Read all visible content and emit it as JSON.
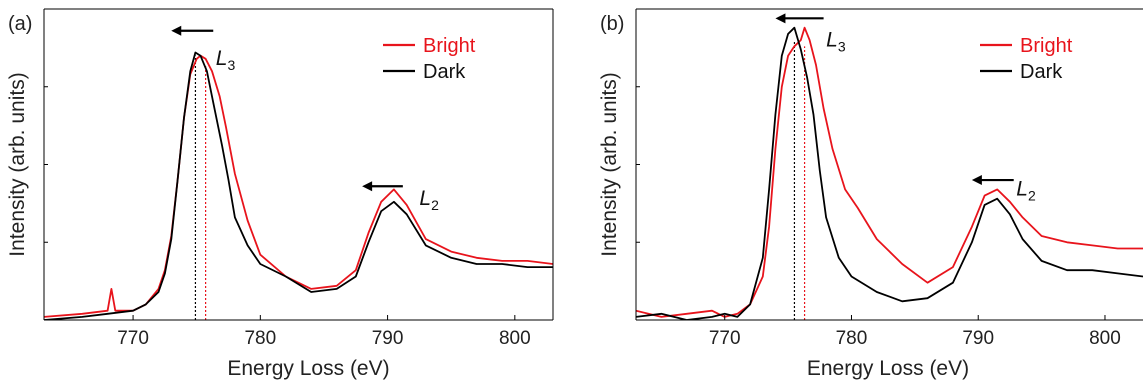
{
  "colors": {
    "bright": "#e8141c",
    "dark": "#000000",
    "axis": "#000000"
  },
  "chart_data": [
    {
      "type": "line",
      "panel_label": "(a)",
      "xlabel": "Energy Loss (eV)",
      "ylabel": "Intensity (arb. units)",
      "xlim": [
        763,
        803
      ],
      "ylim": [
        0,
        1
      ],
      "x_ticks": [
        770,
        780,
        790,
        800
      ],
      "y_ticks_labeled": false,
      "grid": false,
      "legend_position": "top-right",
      "legend": [
        "Bright",
        "Dark"
      ],
      "annotations": [
        {
          "text_base": "L",
          "text_sub": "3",
          "x": 776.5,
          "y": 0.82
        },
        {
          "text_base": "L",
          "text_sub": "2",
          "x": 792.5,
          "y": 0.37
        }
      ],
      "arrows": [
        {
          "from": [
            776.3,
            0.93
          ],
          "to": [
            773.0,
            0.93
          ]
        },
        {
          "from": [
            791.2,
            0.43
          ],
          "to": [
            788.0,
            0.43
          ]
        }
      ],
      "vlines": [
        {
          "x": 774.9,
          "series": "Dark",
          "y_top": 0.85
        },
        {
          "x": 775.7,
          "series": "Bright",
          "y_top": 0.82
        }
      ],
      "series": [
        {
          "name": "Bright",
          "x": [
            763,
            766,
            768,
            768.3,
            768.6,
            770,
            771,
            772,
            772.5,
            773,
            773.5,
            774,
            774.5,
            775,
            775.3,
            775.7,
            776.2,
            776.8,
            777.3,
            778,
            779,
            780,
            782,
            784,
            786,
            787.5,
            788.5,
            789.5,
            790.5,
            791.5,
            793,
            795,
            797,
            799,
            801,
            803
          ],
          "y": [
            0.01,
            0.02,
            0.03,
            0.1,
            0.03,
            0.03,
            0.05,
            0.1,
            0.16,
            0.27,
            0.45,
            0.65,
            0.79,
            0.84,
            0.85,
            0.84,
            0.8,
            0.72,
            0.62,
            0.47,
            0.32,
            0.21,
            0.14,
            0.1,
            0.11,
            0.16,
            0.28,
            0.38,
            0.42,
            0.37,
            0.26,
            0.22,
            0.2,
            0.19,
            0.19,
            0.18
          ]
        },
        {
          "name": "Dark",
          "x": [
            763,
            766,
            768,
            770,
            771,
            772,
            772.5,
            773,
            773.5,
            774,
            774.5,
            774.9,
            775.3,
            775.8,
            776.3,
            777,
            777.5,
            778,
            779,
            780,
            782,
            784,
            786,
            787.5,
            788.5,
            789.5,
            790.5,
            791.5,
            793,
            795,
            797,
            799,
            801,
            803
          ],
          "y": [
            0.0,
            0.01,
            0.02,
            0.03,
            0.05,
            0.09,
            0.15,
            0.26,
            0.45,
            0.65,
            0.8,
            0.86,
            0.85,
            0.8,
            0.7,
            0.56,
            0.45,
            0.33,
            0.24,
            0.18,
            0.14,
            0.09,
            0.1,
            0.14,
            0.25,
            0.35,
            0.38,
            0.34,
            0.24,
            0.2,
            0.18,
            0.18,
            0.17,
            0.17
          ]
        }
      ]
    },
    {
      "type": "line",
      "panel_label": "(b)",
      "xlabel": "Energy Loss (eV)",
      "ylabel": "Intensity (arb. units)",
      "xlim": [
        763,
        803
      ],
      "ylim": [
        0,
        1
      ],
      "x_ticks": [
        770,
        780,
        790,
        800
      ],
      "y_ticks_labeled": false,
      "grid": false,
      "legend_position": "top-right",
      "legend": [
        "Bright",
        "Dark"
      ],
      "annotations": [
        {
          "text_base": "L",
          "text_sub": "3",
          "x": 778.0,
          "y": 0.88
        },
        {
          "text_base": "L",
          "text_sub": "2",
          "x": 793.0,
          "y": 0.4
        }
      ],
      "arrows": [
        {
          "from": [
            777.8,
            0.97
          ],
          "to": [
            774.0,
            0.97
          ]
        },
        {
          "from": [
            792.8,
            0.45
          ],
          "to": [
            789.5,
            0.45
          ]
        }
      ],
      "vlines": [
        {
          "x": 775.5,
          "series": "Dark",
          "y_top": 0.9
        },
        {
          "x": 776.3,
          "series": "Bright",
          "y_top": 0.88
        }
      ],
      "series": [
        {
          "name": "Bright",
          "x": [
            763,
            765,
            767,
            769,
            770,
            771,
            772,
            773,
            773.5,
            774,
            774.5,
            775,
            775.5,
            776,
            776.3,
            776.7,
            777.2,
            777.8,
            778.5,
            779.5,
            780.5,
            782,
            784,
            786,
            788,
            789.5,
            790.5,
            791.5,
            792.5,
            793.5,
            795,
            797,
            799,
            801,
            803
          ],
          "y": [
            0.03,
            0.01,
            0.02,
            0.03,
            0.01,
            0.02,
            0.05,
            0.14,
            0.3,
            0.55,
            0.75,
            0.85,
            0.88,
            0.9,
            0.94,
            0.9,
            0.82,
            0.68,
            0.55,
            0.42,
            0.36,
            0.26,
            0.18,
            0.12,
            0.17,
            0.3,
            0.4,
            0.42,
            0.38,
            0.33,
            0.27,
            0.25,
            0.24,
            0.23,
            0.23
          ]
        },
        {
          "name": "Dark",
          "x": [
            763,
            765,
            767,
            769,
            770,
            771,
            772,
            773,
            773.5,
            774,
            774.5,
            775,
            775.5,
            776,
            776.5,
            777,
            777.5,
            778,
            779,
            780,
            782,
            784,
            786,
            788,
            789.5,
            790.5,
            791.5,
            792.5,
            793.5,
            795,
            797,
            799,
            801,
            803
          ],
          "y": [
            0.01,
            0.02,
            0.0,
            0.01,
            0.02,
            0.01,
            0.05,
            0.2,
            0.42,
            0.66,
            0.85,
            0.92,
            0.94,
            0.87,
            0.78,
            0.66,
            0.48,
            0.33,
            0.2,
            0.14,
            0.09,
            0.06,
            0.07,
            0.12,
            0.25,
            0.37,
            0.39,
            0.34,
            0.26,
            0.19,
            0.16,
            0.16,
            0.15,
            0.14
          ]
        }
      ]
    }
  ]
}
